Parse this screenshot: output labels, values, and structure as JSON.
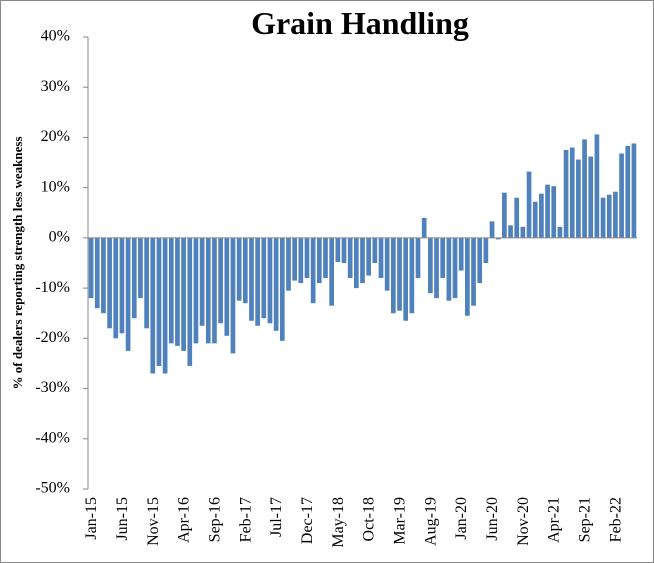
{
  "chart_data": {
    "type": "bar",
    "title": "Grain Handling",
    "y_label": "% of dealers reporting  strength less weakness",
    "color": "#4f81bd",
    "categories": [
      "Jan-15",
      null,
      null,
      null,
      null,
      "Jun-15",
      null,
      null,
      null,
      null,
      "Nov-15",
      null,
      null,
      null,
      null,
      "Apr-16",
      null,
      null,
      null,
      null,
      "Sep-16",
      null,
      null,
      null,
      null,
      "Feb-17",
      null,
      null,
      null,
      null,
      "Jul-17",
      null,
      null,
      null,
      null,
      "Dec-17",
      null,
      null,
      null,
      null,
      "May-18",
      null,
      null,
      null,
      null,
      "Oct-18",
      null,
      null,
      null,
      null,
      "Mar-19",
      null,
      null,
      null,
      null,
      "Aug-19",
      null,
      null,
      null,
      null,
      "Jan-20",
      null,
      null,
      null,
      null,
      "Jun-20",
      null,
      null,
      null,
      null,
      "Nov-20",
      null,
      null,
      null,
      null,
      "Apr-21",
      null,
      null,
      null,
      null,
      "Sep-21",
      null,
      null,
      null,
      null,
      "Feb-22",
      null,
      null,
      null
    ],
    "values": [
      -12,
      -14,
      -15,
      -18,
      -20,
      -19,
      -22.5,
      -16,
      -12,
      -18,
      -27,
      -25.5,
      -27,
      -21,
      -21.5,
      -22.5,
      -25.5,
      -21,
      -17.5,
      -21,
      -21,
      -17,
      -19.5,
      -23,
      -12.5,
      -13,
      -16.5,
      -17.5,
      -16,
      -17,
      -18.5,
      -20.5,
      -10.5,
      -8.5,
      -9,
      -8,
      -13,
      -9,
      -8,
      -13.5,
      -4.8,
      -5,
      -8,
      -10,
      -9,
      -7.5,
      -5,
      -8,
      -10.5,
      -15,
      -14.5,
      -16.5,
      -15,
      -8,
      4,
      -11,
      -12,
      -8,
      -12.5,
      -12,
      -6.5,
      -15.5,
      -13.5,
      -9,
      -5,
      3.3,
      -0.3,
      9,
      2.5,
      8,
      2.2,
      13.2,
      7.2,
      8.8,
      10.6,
      10.3,
      2.2,
      17.5,
      18,
      15.6,
      19.6,
      16.2,
      20.6,
      8,
      8.6,
      9.2,
      16.8,
      18.3,
      18.8
    ],
    "ylim": [
      -50,
      40
    ],
    "yticks": [
      {
        "value": -50,
        "label": "-50%"
      },
      {
        "value": -40,
        "label": "-40%"
      },
      {
        "value": -30,
        "label": "-30%"
      },
      {
        "value": -20,
        "label": "-20%"
      },
      {
        "value": -10,
        "label": "-10%"
      },
      {
        "value": 0,
        "label": "0%"
      },
      {
        "value": 10,
        "label": "10%"
      },
      {
        "value": 20,
        "label": "20%"
      },
      {
        "value": 30,
        "label": "30%"
      },
      {
        "value": 40,
        "label": "40%"
      }
    ]
  }
}
